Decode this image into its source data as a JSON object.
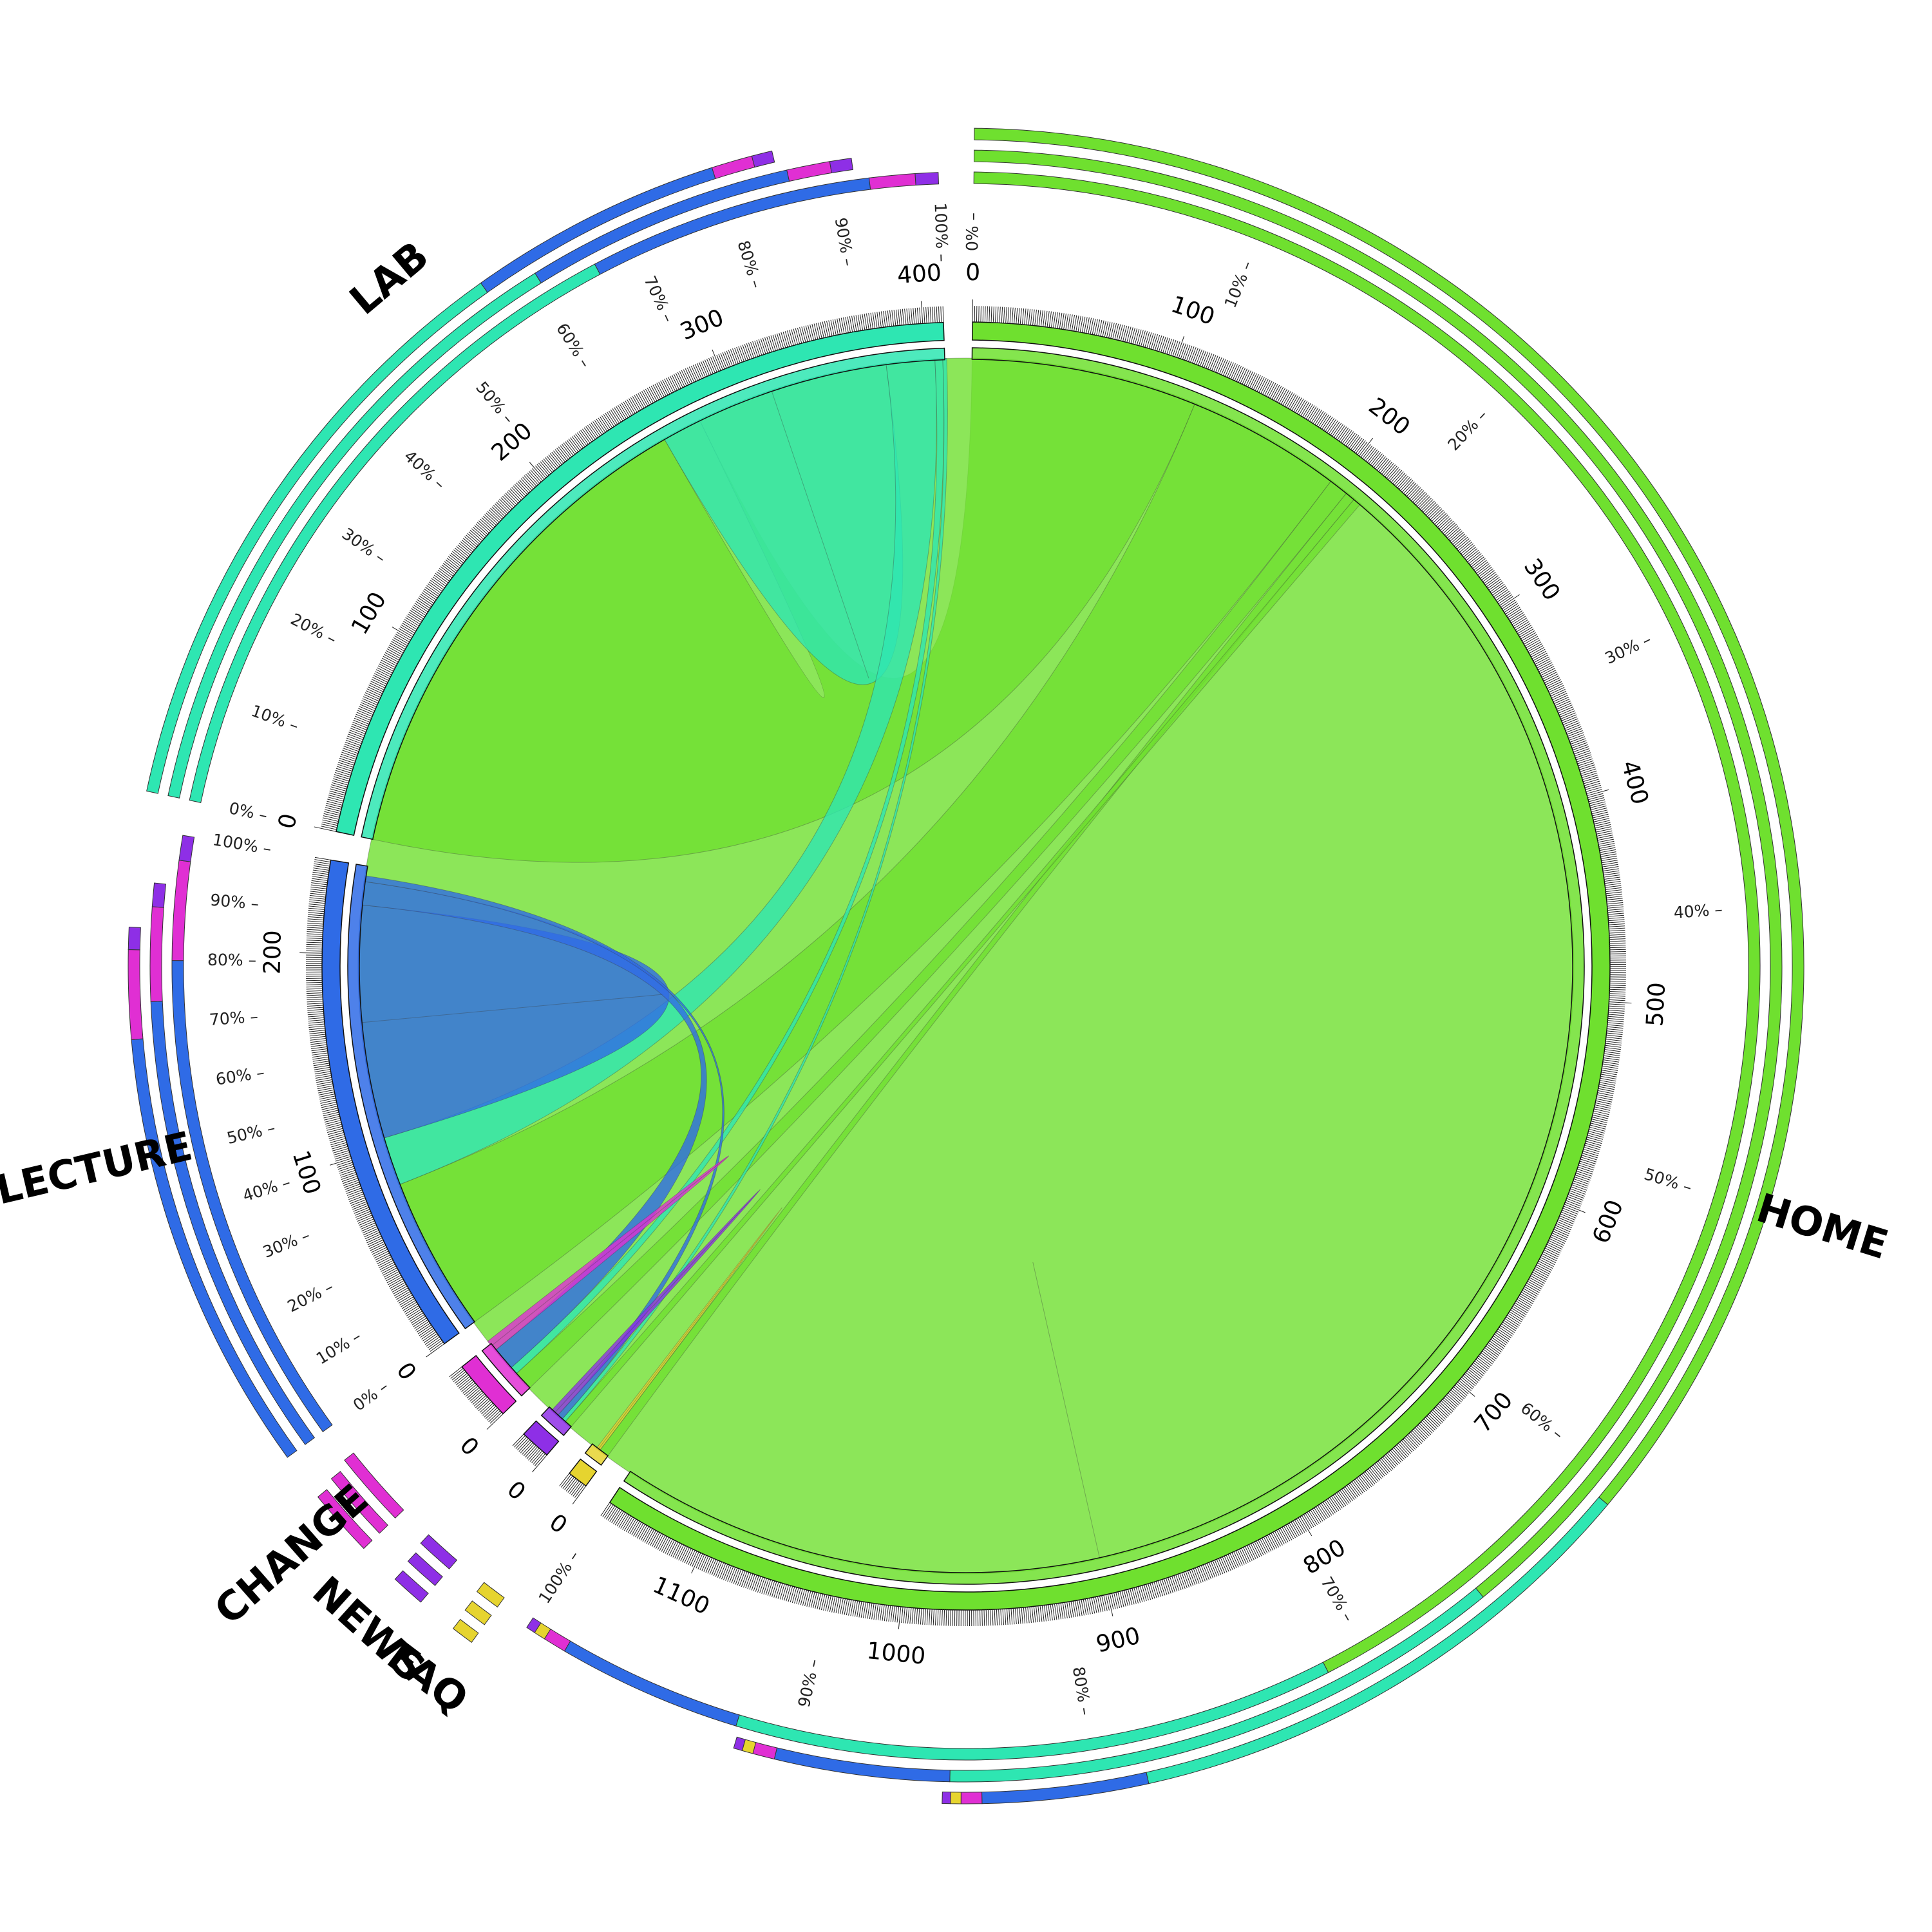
{
  "chart_data": {
    "type": "chord",
    "colors": {
      "HOME": "#6fe02f",
      "LAB": "#2ee6b2",
      "LECTURE": "#2f6be6",
      "CHANGE": "#e02fd3",
      "NEWS": "#8e2fe6",
      "FAQ": "#e6d42f"
    },
    "segments": [
      {
        "name": "HOME",
        "total": 1150,
        "ticks": [
          "0",
          "100",
          "200",
          "300",
          "400",
          "500",
          "600",
          "700",
          "800",
          "900",
          "1000",
          "1100"
        ]
      },
      {
        "name": "FAQ",
        "total": 10,
        "ticks": [
          "0"
        ]
      },
      {
        "name": "NEWS",
        "total": 15,
        "ticks": [
          "0"
        ]
      },
      {
        "name": "CHANGE",
        "total": 30,
        "ticks": [
          "0"
        ]
      },
      {
        "name": "LECTURE",
        "total": 245,
        "ticks": [
          "0",
          "100",
          "200"
        ]
      },
      {
        "name": "LAB",
        "total": 410,
        "ticks": [
          "0",
          "100",
          "200",
          "300",
          "400"
        ]
      }
    ],
    "flows": [
      {
        "from": "HOME",
        "to": "HOME",
        "value": 900
      },
      {
        "from": "HOME",
        "to": "LAB",
        "value": 260
      },
      {
        "from": "HOME",
        "to": "LECTURE",
        "value": 80
      },
      {
        "from": "HOME",
        "to": "CHANGE",
        "value": 10
      },
      {
        "from": "HOME",
        "to": "FAQ",
        "value": 5
      },
      {
        "from": "HOME",
        "to": "NEWS",
        "value": 4
      },
      {
        "from": "LAB",
        "to": "LAB",
        "value": 60
      },
      {
        "from": "LAB",
        "to": "LECTURE",
        "value": 25
      },
      {
        "from": "LAB",
        "to": "CHANGE",
        "value": 4
      },
      {
        "from": "LAB",
        "to": "NEWS",
        "value": 2
      },
      {
        "from": "LECTURE",
        "to": "LECTURE",
        "value": 60
      },
      {
        "from": "LECTURE",
        "to": "CHANGE",
        "value": 12
      },
      {
        "from": "LECTURE",
        "to": "NEWS",
        "value": 3
      },
      {
        "from": "CHANGE",
        "to": "CHANGE",
        "value": 3
      },
      {
        "from": "NEWS",
        "to": "NEWS",
        "value": 2
      },
      {
        "from": "FAQ",
        "to": "FAQ",
        "value": 1
      }
    ],
    "percent_ticks": [
      "0%",
      "10%",
      "20%",
      "30%",
      "40%",
      "50%",
      "60%",
      "70%",
      "80%",
      "90%",
      "100%"
    ]
  }
}
